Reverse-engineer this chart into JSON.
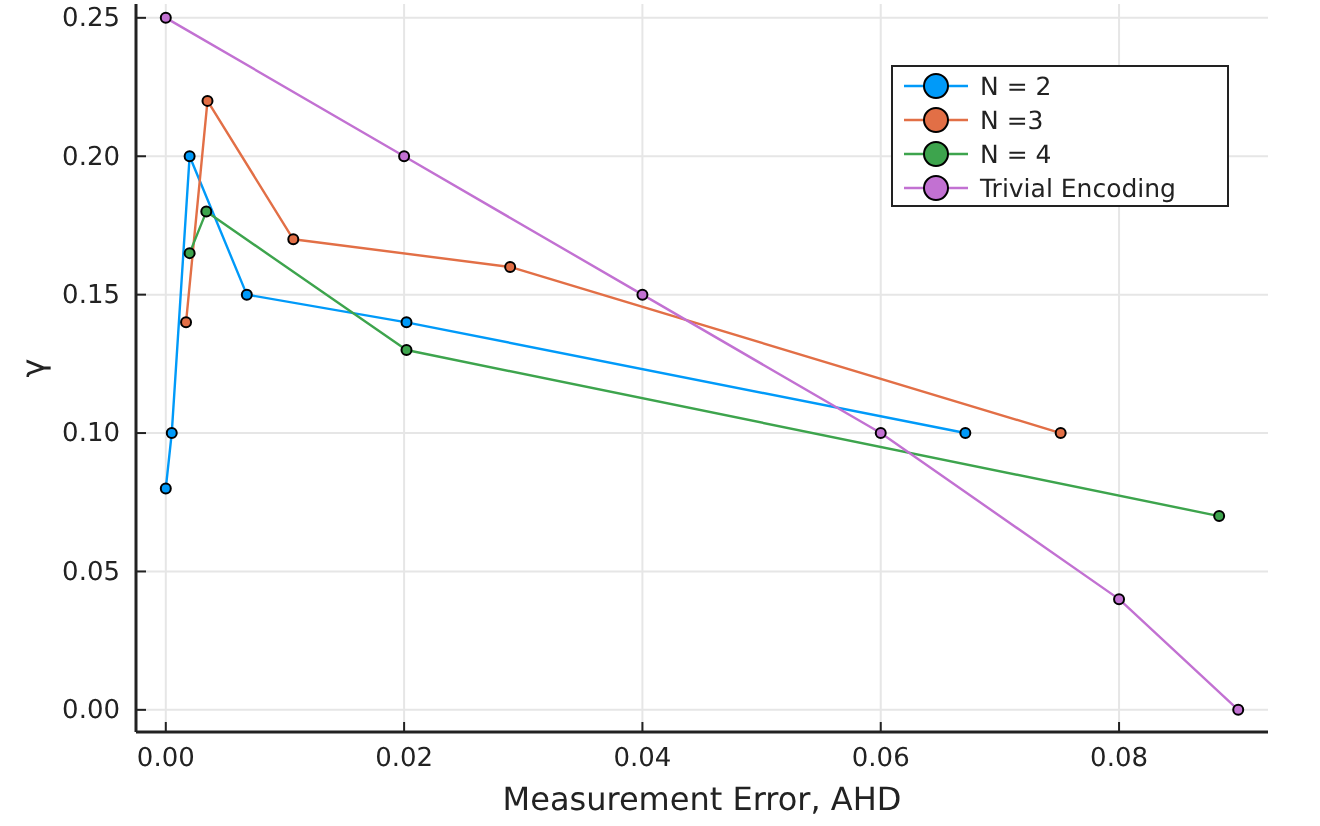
{
  "chart_data": {
    "type": "line",
    "xlabel": "Measurement Error, AHD",
    "ylabel": "γ",
    "xlim": [
      -0.0025,
      0.0925
    ],
    "xticks": [
      {
        "value": 0,
        "label": "0.00"
      },
      0.02,
      0.04,
      0.06,
      0.08
    ],
    "ylim": [
      -0.008,
      0.255
    ],
    "yticks": [
      {
        "value": 0,
        "label": "0.00"
      },
      0.05,
      {
        "value": 0.1,
        "label": "0.10"
      },
      0.15,
      {
        "value": 0.2,
        "label": "0.20"
      },
      0.25
    ],
    "grid": true,
    "legend": "top right",
    "marker": "circle",
    "line_style": "solid",
    "series": [
      {
        "name": "N = 2",
        "color": "#009af9",
        "x": [
          0.0,
          0.0005,
          0.002,
          0.0068,
          0.0202,
          0.0671
        ],
        "values": [
          0.08,
          0.1,
          0.2,
          0.15,
          0.14,
          0.1
        ]
      },
      {
        "name": "N =3",
        "color": "#e26f46",
        "x": [
          0.0017,
          0.0035,
          0.0107,
          0.0289,
          0.0751
        ],
        "values": [
          0.14,
          0.22,
          0.17,
          0.16,
          0.1
        ]
      },
      {
        "name": "N = 4",
        "color": "#3da44d",
        "x": [
          0.002,
          0.0034,
          0.0202,
          0.0884
        ],
        "values": [
          0.165,
          0.18,
          0.13,
          0.07
        ]
      },
      {
        "name": "Trivial Encoding",
        "color": "#c271d2",
        "x": [
          0.0,
          0.02,
          0.04,
          0.06,
          0.08,
          0.09
        ],
        "values": [
          0.25,
          0.2,
          0.15,
          0.1,
          0.04,
          0.0
        ]
      }
    ]
  }
}
